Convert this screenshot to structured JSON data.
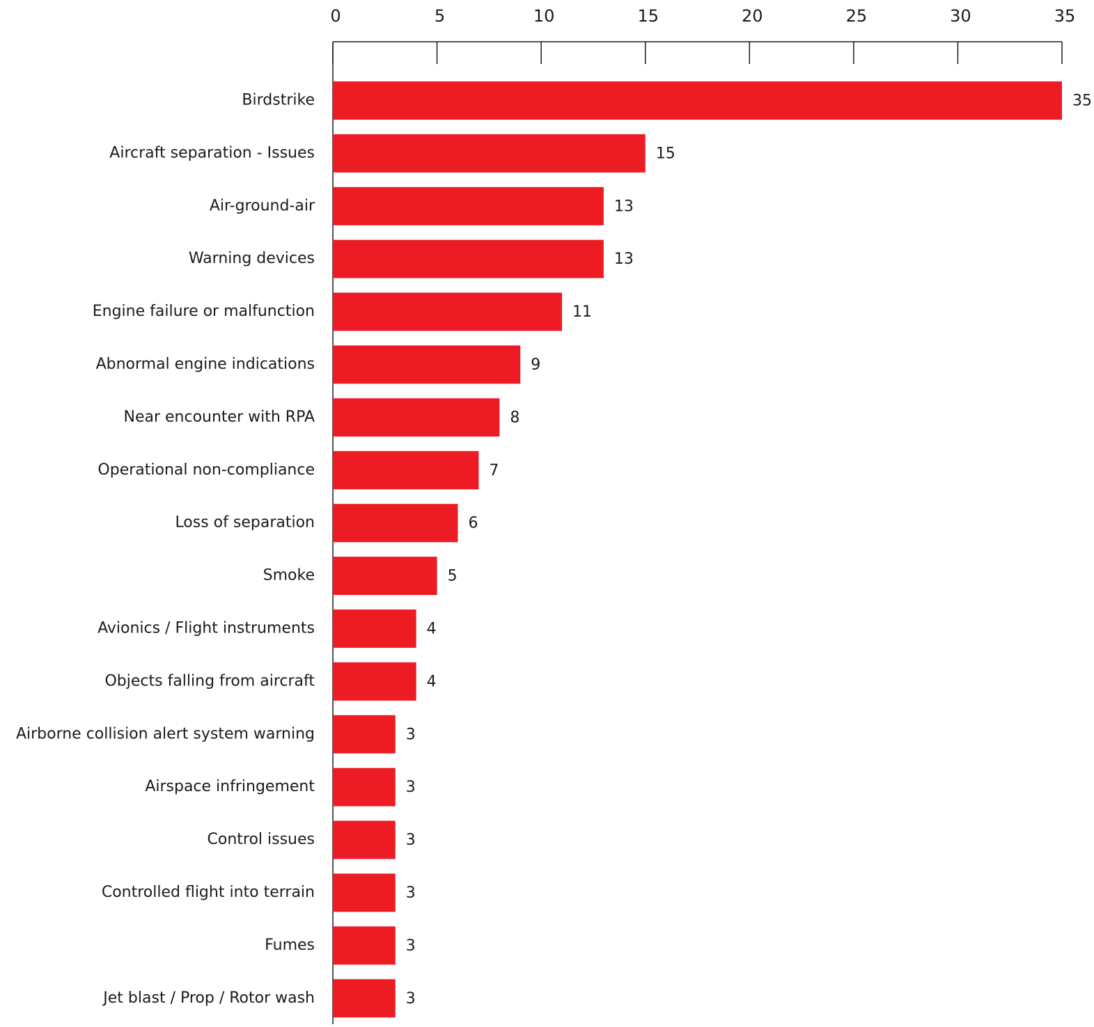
{
  "chart_data": {
    "type": "bar",
    "orientation": "horizontal",
    "title": "",
    "xlabel": "",
    "ylabel": "",
    "xlim": [
      0,
      35
    ],
    "x_ticks": [
      0,
      5,
      10,
      15,
      20,
      25,
      30,
      35
    ],
    "x_axis_position": "top",
    "grid": false,
    "legend": "none",
    "bar_color": "#ED1C24",
    "categories": [
      "Birdstrike",
      "Aircraft separation - Issues",
      "Air-ground-air",
      "Warning devices",
      "Engine failure or malfunction",
      "Abnormal engine indications",
      "Near encounter with RPA",
      "Operational non-compliance",
      "Loss of separation",
      "Smoke",
      "Avionics / Flight instruments",
      "Objects falling from aircraft",
      "Airborne collision alert system warning",
      "Airspace infringement",
      "Control issues",
      "Controlled flight into terrain",
      "Fumes",
      "Jet blast / Prop / Rotor wash"
    ],
    "values": [
      35,
      15,
      13,
      13,
      11,
      9,
      8,
      7,
      6,
      5,
      4,
      4,
      3,
      3,
      3,
      3,
      3,
      3
    ]
  }
}
